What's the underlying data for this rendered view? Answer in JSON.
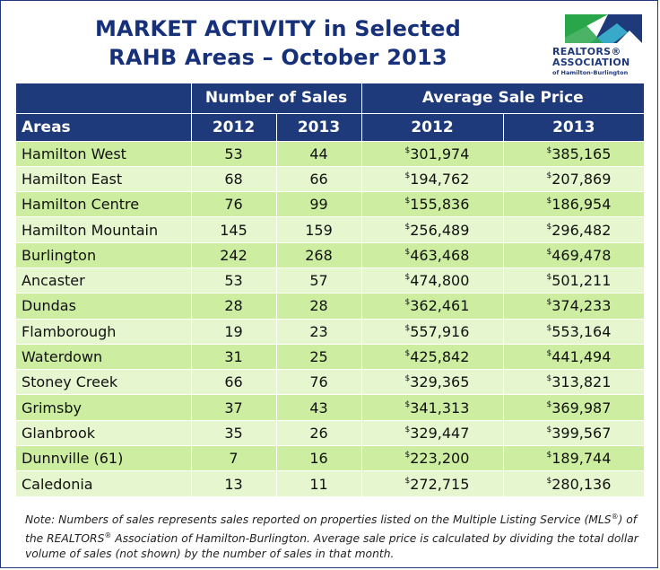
{
  "title": {
    "line1": "MARKET ACTIVITY in Selected",
    "line2": "RAHB Areas – October 2013"
  },
  "logo": {
    "line1": "REALTORS®",
    "line2": "ASSOCIATION",
    "line3": "of Hamilton-Burlington",
    "colors": {
      "green": "#2aa64a",
      "blue": "#1f3a7a",
      "teal": "#39a9c9"
    }
  },
  "table": {
    "group_headers": {
      "sales": "Number of Sales",
      "price": "Average Sale Price"
    },
    "column_headers": {
      "area": "Areas",
      "sales_2012": "2012",
      "sales_2013": "2013",
      "price_2012": "2012",
      "price_2013": "2013"
    },
    "currency_symbol": "$",
    "rows": [
      {
        "area": "Hamilton West",
        "sales_2012": "53",
        "sales_2013": "44",
        "price_2012": "301,974",
        "price_2013": "385,165"
      },
      {
        "area": "Hamilton East",
        "sales_2012": "68",
        "sales_2013": "66",
        "price_2012": "194,762",
        "price_2013": "207,869"
      },
      {
        "area": "Hamilton Centre",
        "sales_2012": "76",
        "sales_2013": "99",
        "price_2012": "155,836",
        "price_2013": "186,954"
      },
      {
        "area": "Hamilton Mountain",
        "sales_2012": "145",
        "sales_2013": "159",
        "price_2012": "256,489",
        "price_2013": "296,482"
      },
      {
        "area": "Burlington",
        "sales_2012": "242",
        "sales_2013": "268",
        "price_2012": "463,468",
        "price_2013": "469,478"
      },
      {
        "area": "Ancaster",
        "sales_2012": "53",
        "sales_2013": "57",
        "price_2012": "474,800",
        "price_2013": "501,211"
      },
      {
        "area": "Dundas",
        "sales_2012": "28",
        "sales_2013": "28",
        "price_2012": "362,461",
        "price_2013": "374,233"
      },
      {
        "area": "Flamborough",
        "sales_2012": "19",
        "sales_2013": "23",
        "price_2012": "557,916",
        "price_2013": "553,164"
      },
      {
        "area": "Waterdown",
        "sales_2012": "31",
        "sales_2013": "25",
        "price_2012": "425,842",
        "price_2013": "441,494"
      },
      {
        "area": "Stoney Creek",
        "sales_2012": "66",
        "sales_2013": "76",
        "price_2012": "329,365",
        "price_2013": "313,821"
      },
      {
        "area": "Grimsby",
        "sales_2012": "37",
        "sales_2013": "43",
        "price_2012": "341,313",
        "price_2013": "369,987"
      },
      {
        "area": "Glanbrook",
        "sales_2012": "35",
        "sales_2013": "26",
        "price_2012": "329,447",
        "price_2013": "399,567"
      },
      {
        "area": "Dunnville (61)",
        "sales_2012": "7",
        "sales_2013": "16",
        "price_2012": "223,200",
        "price_2013": "189,744"
      },
      {
        "area": "Caledonia",
        "sales_2012": "13",
        "sales_2013": "11",
        "price_2012": "272,715",
        "price_2013": "280,136"
      }
    ]
  },
  "note": {
    "part1": "Note:  Numbers of sales represents sales reported on properties listed on the Multiple Listing Service (MLS",
    "reg1": "®",
    "part2": ") of the REALTORS",
    "reg2": "®",
    "part3": " Association of Hamilton-Burlington.  Average sale price is calculated by dividing the total dollar volume of sales (not shown) by the number of sales in that month."
  },
  "colors": {
    "header_blue": "#1f3a7a",
    "row_green_dark": "#cdeea1",
    "row_green_light": "#e6f6cf"
  }
}
